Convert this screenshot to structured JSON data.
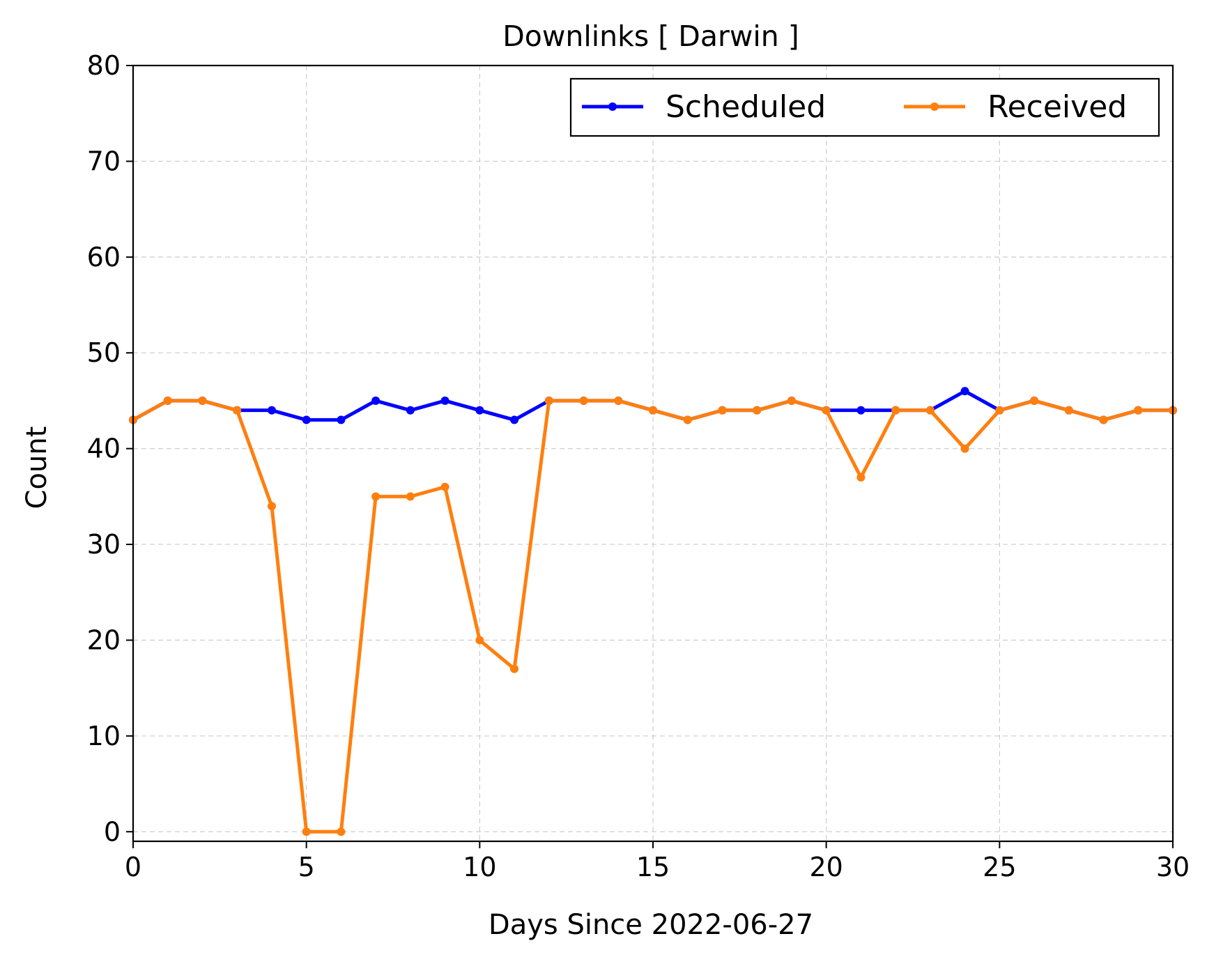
{
  "chart_data": {
    "type": "line",
    "title": "Downlinks [ Darwin ]",
    "xlabel": "Days Since 2022-06-27",
    "ylabel": "Count",
    "xlim": [
      0,
      30
    ],
    "ylim": [
      -1,
      80
    ],
    "xticks": [
      0,
      5,
      10,
      15,
      20,
      25,
      30
    ],
    "yticks": [
      0,
      10,
      20,
      30,
      40,
      50,
      60,
      70,
      80
    ],
    "grid": true,
    "legend_position": "top-right",
    "x": [
      0,
      1,
      2,
      3,
      4,
      5,
      6,
      7,
      8,
      9,
      10,
      11,
      12,
      13,
      14,
      15,
      16,
      17,
      18,
      19,
      20,
      21,
      22,
      23,
      24,
      25,
      26,
      27,
      28,
      29,
      30
    ],
    "series": [
      {
        "name": "Scheduled",
        "color": "#0000ff",
        "values": [
          43,
          45,
          45,
          44,
          44,
          43,
          43,
          45,
          44,
          45,
          44,
          43,
          45,
          45,
          45,
          44,
          43,
          44,
          44,
          45,
          44,
          44,
          44,
          44,
          46,
          44,
          45,
          44,
          43,
          44,
          44
        ]
      },
      {
        "name": "Received",
        "color": "#ff7f0e",
        "values": [
          43,
          45,
          45,
          44,
          34,
          0,
          0,
          35,
          35,
          36,
          20,
          17,
          45,
          45,
          45,
          44,
          43,
          44,
          44,
          45,
          44,
          37,
          44,
          44,
          40,
          44,
          45,
          44,
          43,
          44,
          44
        ]
      }
    ]
  }
}
